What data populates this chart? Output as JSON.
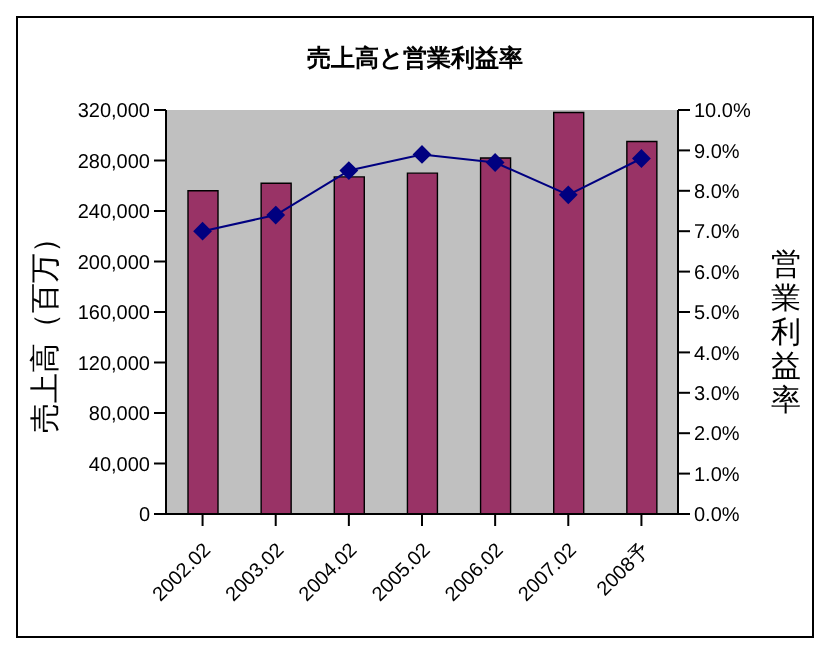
{
  "chart_data": {
    "type": "bar",
    "title": "売上高と営業利益率",
    "ylabel": "売上高（百万）",
    "y2label": "営業利益率",
    "categories": [
      "2002.02",
      "2003.02",
      "2004.02",
      "2005.02",
      "2006.02",
      "2007.02",
      "2008予"
    ],
    "series": [
      {
        "color": "#993366",
        "values": [
          256000,
          262000,
          267000,
          270000,
          282000,
          318000,
          295000
        ]
      },
      {
        "type": "line",
        "axis": "y2",
        "color": "#000080",
        "values": [
          7.0,
          7.4,
          8.5,
          8.9,
          8.7,
          7.9,
          8.8
        ]
      }
    ],
    "ylim": [
      0,
      320000
    ],
    "yticks": [
      {
        "value": 0,
        "label": "0"
      },
      {
        "value": 40000,
        "label": "40,000"
      },
      {
        "value": 80000,
        "label": "80,000"
      },
      {
        "value": 120000,
        "label": "120,000"
      },
      {
        "value": 160000,
        "label": "160,000"
      },
      {
        "value": 200000,
        "label": "200,000"
      },
      {
        "value": 240000,
        "label": "240,000"
      },
      {
        "value": 280000,
        "label": "280,000"
      },
      {
        "value": 320000,
        "label": "320,000"
      }
    ],
    "y2lim": [
      0,
      10
    ],
    "y2ticks": [
      {
        "value": 0,
        "label": "0.0%"
      },
      {
        "value": 1,
        "label": "1.0%"
      },
      {
        "value": 2,
        "label": "2.0%"
      },
      {
        "value": 3,
        "label": "3.0%"
      },
      {
        "value": 4,
        "label": "4.0%"
      },
      {
        "value": 5,
        "label": "5.0%"
      },
      {
        "value": 6,
        "label": "6.0%"
      },
      {
        "value": 7,
        "label": "7.0%"
      },
      {
        "value": 8,
        "label": "8.0%"
      },
      {
        "value": 9,
        "label": "9.0%"
      },
      {
        "value": 10,
        "label": "10.0%"
      }
    ],
    "marker": "diamond",
    "grid": false,
    "legend": false
  }
}
